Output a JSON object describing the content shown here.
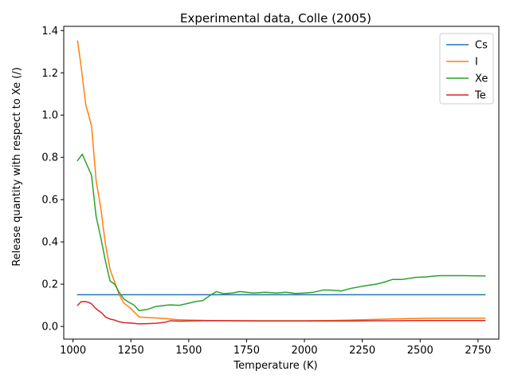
{
  "chart_data": {
    "type": "line",
    "title": "Experimental data, Colle (2005)",
    "xlabel": "Temperature (K)",
    "ylabel": "Release quantity with respect to Xe (/)",
    "xlim": [
      960,
      2840
    ],
    "ylim": [
      -0.06,
      1.42
    ],
    "xticks": [
      1000,
      1250,
      1500,
      1750,
      2000,
      2250,
      2500,
      2750
    ],
    "yticks": [
      0.0,
      0.2,
      0.4,
      0.6,
      0.8,
      1.0,
      1.2,
      1.4
    ],
    "grid": false,
    "legend_position": "top-right",
    "series": [
      {
        "name": "Cs",
        "color": "#1f77b4",
        "x": [
          1020,
          2780
        ],
        "y": [
          0.15,
          0.15
        ]
      },
      {
        "name": "I",
        "color": "#ff7f0e",
        "x": [
          1020,
          1035,
          1055,
          1080,
          1100,
          1120,
          1140,
          1160,
          1180,
          1200,
          1220,
          1250,
          1285,
          1320,
          1360,
          1400,
          1450,
          1500,
          1550,
          1600,
          1700,
          1800,
          1900,
          2000,
          2100,
          2200,
          2300,
          2400,
          2500,
          2600,
          2700,
          2780
        ],
        "y": [
          1.35,
          1.23,
          1.05,
          0.95,
          0.69,
          0.56,
          0.39,
          0.27,
          0.21,
          0.15,
          0.11,
          0.085,
          0.045,
          0.042,
          0.04,
          0.037,
          0.032,
          0.03,
          0.029,
          0.028,
          0.027,
          0.027,
          0.027,
          0.027,
          0.028,
          0.03,
          0.033,
          0.036,
          0.038,
          0.039,
          0.039,
          0.039
        ]
      },
      {
        "name": "Xe",
        "color": "#2ca02c",
        "x": [
          1020,
          1040,
          1060,
          1080,
          1100,
          1120,
          1140,
          1160,
          1180,
          1200,
          1220,
          1240,
          1265,
          1285,
          1320,
          1360,
          1400,
          1420,
          1460,
          1500,
          1530,
          1560,
          1590,
          1620,
          1650,
          1690,
          1720,
          1780,
          1830,
          1880,
          1920,
          1960,
          2000,
          2040,
          2080,
          2110,
          2160,
          2200,
          2260,
          2310,
          2340,
          2380,
          2420,
          2480,
          2520,
          2580,
          2640,
          2700,
          2780
        ],
        "y": [
          0.785,
          0.815,
          0.765,
          0.715,
          0.52,
          0.42,
          0.31,
          0.215,
          0.2,
          0.16,
          0.13,
          0.115,
          0.1,
          0.075,
          0.08,
          0.095,
          0.1,
          0.102,
          0.1,
          0.11,
          0.118,
          0.122,
          0.145,
          0.165,
          0.155,
          0.158,
          0.165,
          0.158,
          0.162,
          0.158,
          0.162,
          0.156,
          0.158,
          0.162,
          0.172,
          0.172,
          0.168,
          0.18,
          0.192,
          0.2,
          0.208,
          0.222,
          0.222,
          0.232,
          0.234,
          0.24,
          0.24,
          0.24,
          0.239
        ]
      },
      {
        "name": "Te",
        "color": "#d62728",
        "x": [
          1020,
          1035,
          1050,
          1065,
          1080,
          1095,
          1110,
          1125,
          1140,
          1160,
          1180,
          1200,
          1220,
          1250,
          1285,
          1320,
          1360,
          1400,
          1420,
          1460,
          1500,
          1550,
          1600,
          1700,
          1800,
          1900,
          2000,
          2100,
          2200,
          2300,
          2400,
          2500,
          2600,
          2700,
          2780
        ],
        "y": [
          0.1,
          0.117,
          0.118,
          0.115,
          0.107,
          0.088,
          0.075,
          0.063,
          0.045,
          0.035,
          0.03,
          0.022,
          0.018,
          0.016,
          0.012,
          0.013,
          0.015,
          0.02,
          0.027,
          0.025,
          0.026,
          0.027,
          0.028,
          0.027,
          0.026,
          0.026,
          0.026,
          0.026,
          0.026,
          0.027,
          0.027,
          0.028,
          0.028,
          0.028,
          0.028
        ]
      }
    ]
  }
}
